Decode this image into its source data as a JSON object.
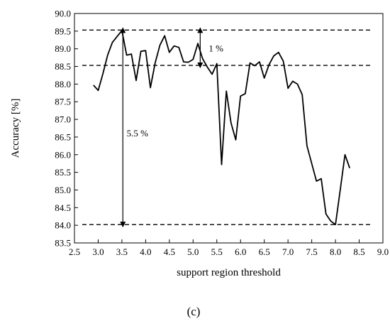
{
  "panel_label": "(c)",
  "chart_data": {
    "type": "line",
    "title": "",
    "xlabel": "support region threshold",
    "ylabel": "Accuracy [%]",
    "xlim": [
      2.5,
      9.0
    ],
    "ylim": [
      83.5,
      90.0
    ],
    "xticks": [
      "2.5",
      "3.0",
      "3.5",
      "4.0",
      "4.5",
      "5.0",
      "5.5",
      "6.0",
      "6.5",
      "7.0",
      "7.5",
      "8.0",
      "8.5",
      "9.0"
    ],
    "yticks": [
      "83.5",
      "84.0",
      "84.5",
      "85.0",
      "85.5",
      "86.0",
      "86.5",
      "87.0",
      "87.5",
      "88.0",
      "88.5",
      "89.0",
      "89.5",
      "90.0"
    ],
    "grid": false,
    "series": [
      {
        "x": [
          2.9,
          3.0,
          3.1,
          3.2,
          3.3,
          3.4,
          3.5,
          3.6,
          3.7,
          3.8,
          3.9,
          4.0,
          4.1,
          4.2,
          4.3,
          4.4,
          4.5,
          4.6,
          4.7,
          4.8,
          4.9,
          5.0,
          5.1,
          5.2,
          5.3,
          5.4,
          5.5,
          5.6,
          5.7,
          5.8,
          5.9,
          6.0,
          6.1,
          6.2,
          6.3,
          6.4,
          6.5,
          6.6,
          6.7,
          6.8,
          6.9,
          7.0,
          7.1,
          7.2,
          7.3,
          7.4,
          7.5,
          7.6,
          7.7,
          7.8,
          7.9,
          8.0,
          8.1,
          8.2,
          8.3
        ],
        "values": [
          87.97,
          87.82,
          88.3,
          88.82,
          89.18,
          89.35,
          89.52,
          88.82,
          88.85,
          88.1,
          88.93,
          88.95,
          87.9,
          88.6,
          89.1,
          89.37,
          88.9,
          89.08,
          89.04,
          88.63,
          88.62,
          88.7,
          89.15,
          88.72,
          88.48,
          88.28,
          88.58,
          85.72,
          87.8,
          86.9,
          86.42,
          87.66,
          87.73,
          88.6,
          88.52,
          88.63,
          88.17,
          88.55,
          88.8,
          88.9,
          88.65,
          87.88,
          88.08,
          88.0,
          87.7,
          86.25,
          85.75,
          85.25,
          85.32,
          84.32,
          84.12,
          84.02,
          85.0,
          86.0,
          85.62
        ]
      }
    ],
    "reference_lines": [
      89.53,
      88.53,
      84.02
    ],
    "annotations": [
      {
        "text": "1 %",
        "x": 5.15,
        "y_from": 88.53,
        "y_to": 89.53,
        "label_x": 5.33,
        "label_y": 89.0
      },
      {
        "text": "5.5 %",
        "x": 3.52,
        "y_from": 89.53,
        "y_to": 84.02,
        "label_x": 3.6,
        "label_y": 86.6
      }
    ]
  }
}
